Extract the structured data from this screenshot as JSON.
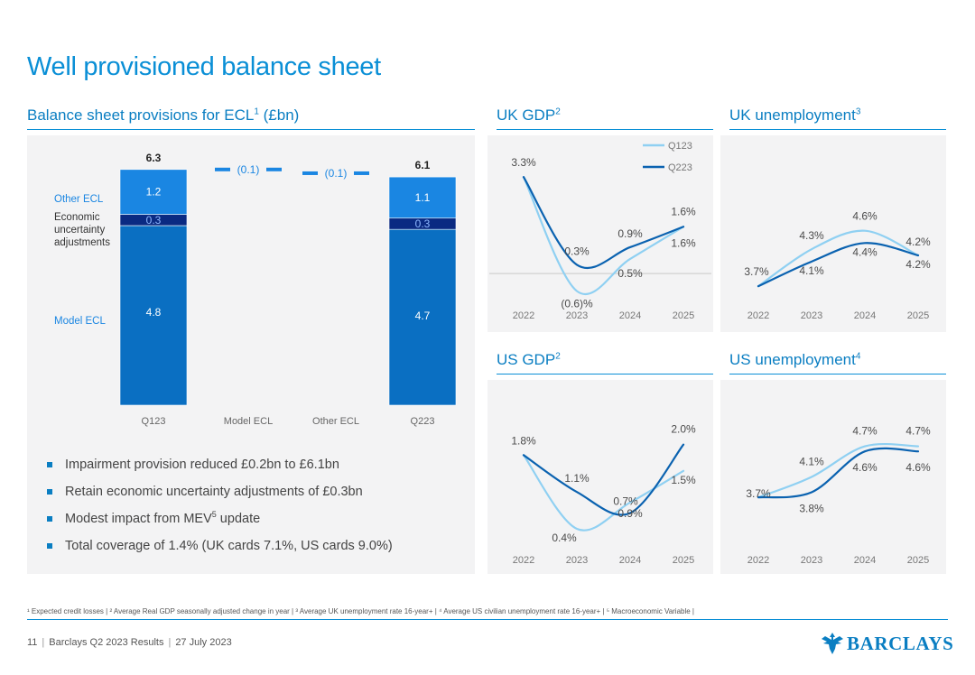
{
  "page": {
    "title": "Well provisioned balance sheet",
    "footnotes": "¹ Expected credit losses | ² Average Real GDP seasonally adjusted change in year | ³ Average UK unemployment rate 16-year+ | ⁴ Average US civilian unemployment rate 16-year+ | ⁵ Macroeconomic Variable |",
    "footer": {
      "page_number": "11",
      "report": "Barclays Q2 2023 Results",
      "date": "27 July 2023"
    },
    "logo_text": "BARCLAYS"
  },
  "sections": {
    "ecl": {
      "title": "Balance sheet provisions for ECL",
      "sup": "1",
      "suffix": " (£bn)"
    },
    "uk_gdp": {
      "title": "UK GDP",
      "sup": "2"
    },
    "uk_unemp": {
      "title": "UK unemployment",
      "sup": "3"
    },
    "us_gdp": {
      "title": "US GDP",
      "sup": "2"
    },
    "us_unemp": {
      "title": "US unemployment",
      "sup": "4"
    }
  },
  "bullets": {
    "b1": "Impairment provision reduced £0.2bn to £6.1bn",
    "b2": "Retain economic uncertainty adjustments of £0.3bn",
    "b3_pre": "Modest impact from MEV",
    "b3_sup": "5",
    "b3_post": " update",
    "b4": "Total coverage of 1.4% (UK cards 7.1%, US cards 9.0%)"
  },
  "colors": {
    "model_ecl": "#0a6fc2",
    "econ_adj": "#0a2a82",
    "other_ecl": "#1a86e2",
    "q123_line": "#8fd0f2",
    "q223_line": "#0a62b0",
    "accent": "#0a8fd6",
    "panel_bg": "#f3f3f4"
  },
  "chart_data": [
    {
      "id": "ecl",
      "type": "bar",
      "title": "Balance sheet provisions for ECL¹ (£bn)",
      "categories": [
        "Q123",
        "Model ECL",
        "Other ECL",
        "Q223"
      ],
      "legend": {
        "other": "Other ECL",
        "econ": "Economic uncertainty adjustments",
        "econ_lines": [
          "Economic",
          "uncertainty",
          "adjustments"
        ],
        "model": "Model ECL"
      },
      "stacks": [
        {
          "category": "Q123",
          "model": 4.8,
          "econ": 0.3,
          "other": 1.2,
          "total": 6.3,
          "model_label": "4.8",
          "econ_label": "0.3",
          "other_label": "1.2",
          "total_label": "6.3"
        },
        {
          "category": "Q223",
          "model": 4.7,
          "econ": 0.3,
          "other": 1.1,
          "total": 6.1,
          "model_label": "4.7",
          "econ_label": "0.3",
          "other_label": "1.1",
          "total_label": "6.1"
        }
      ],
      "bridges": [
        {
          "category": "Model ECL",
          "value": -0.1,
          "label": "(0.1)"
        },
        {
          "category": "Other ECL",
          "value": -0.1,
          "label": "(0.1)"
        }
      ],
      "ylim": [
        0,
        6.6
      ]
    },
    {
      "id": "uk_gdp",
      "type": "line",
      "title": "UK GDP²",
      "x": [
        "2022",
        "2023",
        "2024",
        "2025"
      ],
      "ylim": [
        -1.2,
        3.8
      ],
      "zero_line": true,
      "series": [
        {
          "name": "Q123",
          "values": [
            3.3,
            -0.6,
            0.5,
            1.6
          ],
          "labels": [
            "",
            "(0.6)%",
            "0.5%",
            "1.6%"
          ]
        },
        {
          "name": "Q223",
          "values": [
            3.3,
            0.3,
            0.9,
            1.6
          ],
          "labels": [
            "3.3%",
            "0.3%",
            "0.9%",
            "1.6%"
          ]
        }
      ],
      "legend": {
        "q123": "Q123",
        "q223": "Q223"
      }
    },
    {
      "id": "uk_unemp",
      "type": "line",
      "title": "UK unemployment³",
      "x": [
        "2022",
        "2023",
        "2024",
        "2025"
      ],
      "ylim": [
        3.0,
        6.0
      ],
      "series": [
        {
          "name": "Q123",
          "values": [
            3.7,
            4.3,
            4.6,
            4.2
          ],
          "labels": [
            "3.7%",
            "4.3%",
            "4.6%",
            "4.2%"
          ]
        },
        {
          "name": "Q223",
          "values": [
            3.7,
            4.1,
            4.4,
            4.2
          ],
          "labels": [
            "",
            "4.1%",
            "4.4%",
            "4.2%"
          ]
        }
      ]
    },
    {
      "id": "us_gdp",
      "type": "line",
      "title": "US GDP²",
      "x": [
        "2022",
        "2023",
        "2024",
        "2025"
      ],
      "ylim": [
        -0.2,
        2.8
      ],
      "series": [
        {
          "name": "Q123",
          "values": [
            1.8,
            0.4,
            0.9,
            1.5
          ],
          "labels": [
            "1.8%",
            "0.4%",
            "0.9%",
            "1.5%"
          ]
        },
        {
          "name": "Q223",
          "values": [
            1.8,
            1.1,
            0.7,
            2.0
          ],
          "labels": [
            "",
            "1.1%",
            "0.7%",
            "2.0%"
          ]
        }
      ]
    },
    {
      "id": "us_unemp",
      "type": "line",
      "title": "US unemployment⁴",
      "x": [
        "2022",
        "2023",
        "2024",
        "2025"
      ],
      "ylim": [
        2.2,
        6.0
      ],
      "series": [
        {
          "name": "Q123",
          "values": [
            3.7,
            4.1,
            4.7,
            4.7
          ],
          "labels": [
            "3.7%",
            "4.1%",
            "4.7%",
            "4.7%"
          ]
        },
        {
          "name": "Q223",
          "values": [
            3.7,
            3.8,
            4.6,
            4.6
          ],
          "labels": [
            "",
            "3.8%",
            "4.6%",
            "4.6%"
          ]
        }
      ]
    }
  ]
}
